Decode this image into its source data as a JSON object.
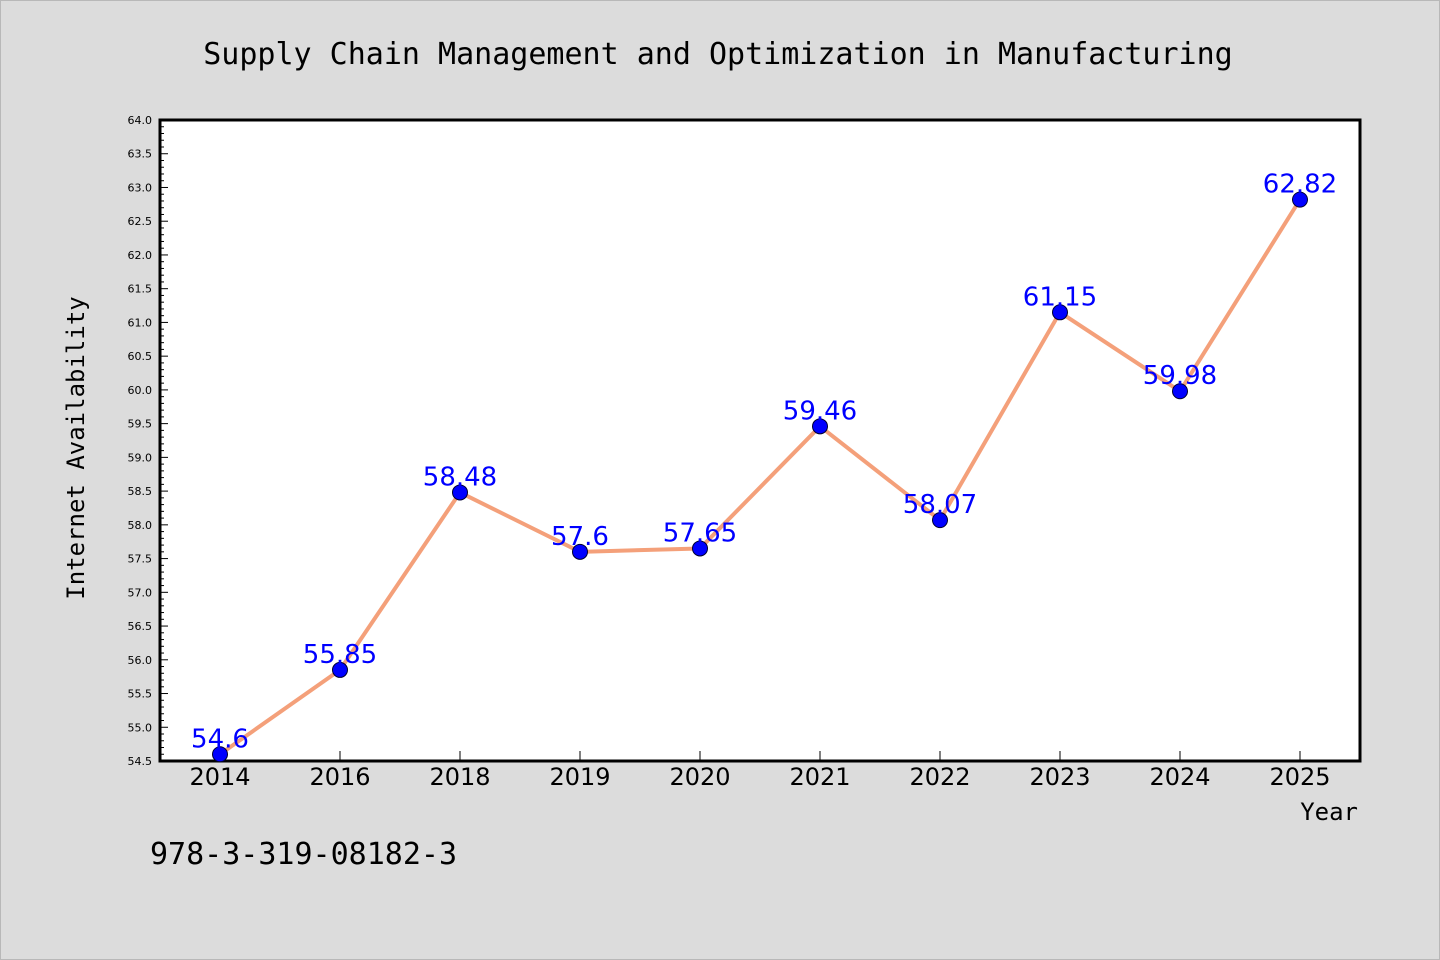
{
  "colors": {
    "background": "#dcdcdc",
    "plot_area": "#ffffff",
    "line": "#f4a07a",
    "marker": "#0000ff",
    "data_label": "#0000ff"
  },
  "isbn": "978-3-319-08182-3",
  "chart_data": {
    "type": "line",
    "title": "Supply Chain Management and Optimization in Manufacturing",
    "xlabel": "Year",
    "ylabel": "Internet Availability",
    "categories": [
      "2014",
      "2016",
      "2018",
      "2019",
      "2020",
      "2021",
      "2022",
      "2023",
      "2024",
      "2025"
    ],
    "series": [
      {
        "values": [
          54.6,
          55.85,
          58.48,
          57.6,
          57.65,
          59.46,
          58.07,
          61.15,
          59.98,
          62.82
        ],
        "labels": [
          "54.6",
          "55.85",
          "58.48",
          "57.6",
          "57.65",
          "59.46",
          "58.07",
          "61.15",
          "59.98",
          "62.82"
        ]
      }
    ],
    "ylim": [
      54.5,
      64.0
    ],
    "yticks": [
      "54.5",
      "55.0",
      "55.5",
      "56.0",
      "56.5",
      "57.0",
      "57.5",
      "58.0",
      "58.5",
      "59.0",
      "59.5",
      "60.0",
      "60.5",
      "61.0",
      "61.5",
      "62.0",
      "62.5",
      "63.0",
      "63.5",
      "64.0"
    ],
    "grid": false,
    "legend": "none"
  }
}
